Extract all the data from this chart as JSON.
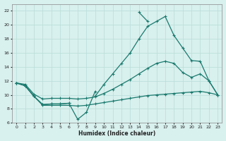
{
  "xlabel": "Humidex (Indice chaleur)",
  "color": "#1a7a6e",
  "bg_color": "#d8f0ee",
  "grid_color": "#b8ddd8",
  "ylim": [
    6,
    23
  ],
  "xlim": [
    -0.5,
    23.5
  ],
  "yticks": [
    6,
    8,
    10,
    12,
    14,
    16,
    18,
    20,
    22
  ],
  "xticks": [
    0,
    1,
    2,
    3,
    4,
    5,
    6,
    7,
    8,
    9,
    10,
    11,
    12,
    13,
    14,
    15,
    16,
    17,
    18,
    19,
    20,
    21,
    22,
    23
  ],
  "x": [
    0,
    1,
    2,
    3,
    4,
    5,
    6,
    7,
    8,
    9,
    10,
    11,
    12,
    13,
    14,
    15,
    16,
    17,
    18,
    19,
    20,
    21,
    22,
    23
  ],
  "line_peak": [
    null,
    null,
    null,
    null,
    null,
    null,
    null,
    null,
    null,
    null,
    null,
    null,
    null,
    null,
    21.8,
    20.5,
    null,
    null,
    null,
    null,
    null,
    null,
    null,
    null
  ],
  "line_high": [
    11.7,
    11.3,
    9.8,
    8.6,
    8.7,
    8.7,
    8.8,
    null,
    null,
    9.8,
    11.5,
    13.0,
    14.5,
    16.0,
    18.0,
    19.8,
    20.5,
    21.2,
    18.5,
    16.7,
    14.9,
    14.8,
    12.0,
    10.0
  ],
  "line_mid": [
    11.7,
    11.5,
    10.1,
    9.4,
    9.5,
    9.5,
    9.5,
    9.4,
    9.5,
    9.7,
    10.2,
    10.8,
    11.5,
    12.2,
    13.0,
    13.8,
    14.5,
    14.8,
    14.5,
    13.2,
    12.5,
    13.0,
    12.0,
    10.0
  ],
  "line_low": [
    11.7,
    11.3,
    9.8,
    8.5,
    8.5,
    8.5,
    8.5,
    8.4,
    8.5,
    8.7,
    8.9,
    9.1,
    9.3,
    9.5,
    9.7,
    9.9,
    10.0,
    10.1,
    10.2,
    10.3,
    10.4,
    10.5,
    10.3,
    10.0
  ],
  "line_min": [
    11.7,
    11.3,
    9.8,
    8.6,
    8.7,
    8.7,
    8.8,
    6.5,
    7.5,
    10.5,
    null,
    null,
    null,
    null,
    null,
    null,
    null,
    null,
    null,
    null,
    null,
    null,
    null,
    null
  ]
}
